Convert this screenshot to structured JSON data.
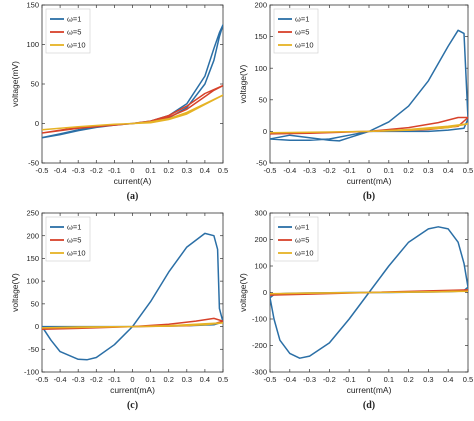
{
  "colors": {
    "w1": "#2b6fa6",
    "w5": "#d7422a",
    "w10": "#e6b325",
    "axis": "#333333"
  },
  "chart_data": [
    {
      "id": "a",
      "type": "line",
      "caption": "(a)",
      "xlabel": "current(A)",
      "ylabel": "voltage(mV)",
      "xlim": [
        -0.5,
        0.5
      ],
      "ylim": [
        -50,
        150
      ],
      "xticks": [
        -0.5,
        -0.4,
        -0.3,
        -0.2,
        -0.1,
        0,
        0.1,
        0.2,
        0.3,
        0.4,
        0.5
      ],
      "yticks": [
        -50,
        0,
        50,
        100,
        150
      ],
      "legend": "top-left",
      "series": [
        {
          "name": "ω=1",
          "color": "#2b6fa6",
          "x": [
            -0.5,
            -0.4,
            -0.3,
            -0.2,
            -0.1,
            0,
            0.1,
            0.2,
            0.3,
            0.4,
            0.45,
            0.48,
            0.5,
            0.48,
            0.45,
            0.4,
            0.3,
            0.2,
            0.1,
            0,
            -0.1,
            -0.2,
            -0.3,
            -0.4,
            -0.5
          ],
          "y": [
            -18,
            -14,
            -9,
            -5,
            -2,
            0,
            2,
            7,
            20,
            50,
            80,
            110,
            125,
            115,
            95,
            60,
            25,
            10,
            3,
            0,
            -2,
            -5,
            -8,
            -13,
            -18
          ]
        },
        {
          "name": "ω=5",
          "color": "#d7422a",
          "x": [
            -0.5,
            -0.3,
            -0.1,
            0,
            0.1,
            0.2,
            0.3,
            0.4,
            0.5,
            0.45,
            0.4,
            0.3,
            0.2,
            0.1,
            0,
            -0.1,
            -0.3,
            -0.5
          ],
          "y": [
            -12,
            -6,
            -2,
            0,
            3,
            10,
            22,
            38,
            48,
            42,
            34,
            18,
            8,
            2,
            0,
            -2,
            -5,
            -12
          ]
        },
        {
          "name": "ω=10",
          "color": "#e6b325",
          "x": [
            -0.5,
            -0.3,
            -0.1,
            0,
            0.1,
            0.2,
            0.3,
            0.4,
            0.5,
            0.45,
            0.4,
            0.3,
            0.2,
            0.1,
            0,
            -0.1,
            -0.3,
            -0.5
          ],
          "y": [
            -8,
            -4,
            -1,
            0,
            2,
            6,
            14,
            25,
            36,
            30,
            24,
            12,
            5,
            1,
            0,
            -1,
            -4,
            -8
          ]
        }
      ]
    },
    {
      "id": "b",
      "type": "line",
      "caption": "(b)",
      "xlabel": "current(mA)",
      "ylabel": "voltage(V)",
      "xlim": [
        -0.5,
        0.5
      ],
      "ylim": [
        -50,
        200
      ],
      "xticks": [
        -0.5,
        -0.4,
        -0.3,
        -0.2,
        -0.1,
        0,
        0.1,
        0.2,
        0.3,
        0.4,
        0.5
      ],
      "yticks": [
        -50,
        0,
        50,
        100,
        150,
        200
      ],
      "legend": "top-left",
      "series": [
        {
          "name": "ω=1",
          "color": "#2b6fa6",
          "x": [
            -0.5,
            -0.4,
            -0.3,
            -0.2,
            -0.1,
            0,
            0.1,
            0.2,
            0.3,
            0.4,
            0.45,
            0.48,
            0.5,
            0.48,
            0.4,
            0.3,
            0.2,
            0.1,
            0,
            -0.1,
            -0.15,
            -0.2,
            -0.3,
            -0.4,
            -0.5
          ],
          "y": [
            -12,
            -14,
            -14,
            -12,
            -6,
            0,
            15,
            40,
            80,
            135,
            160,
            155,
            20,
            5,
            2,
            0,
            0,
            0,
            0,
            -10,
            -15,
            -14,
            -10,
            -6,
            -12
          ]
        },
        {
          "name": "ω=5",
          "color": "#d7422a",
          "x": [
            -0.5,
            -0.3,
            0,
            0.2,
            0.35,
            0.45,
            0.5,
            0.45,
            0.3,
            0,
            -0.3,
            -0.5
          ],
          "y": [
            -4,
            -3,
            0,
            6,
            14,
            22,
            22,
            8,
            3,
            0,
            -2,
            -4
          ]
        },
        {
          "name": "ω=10",
          "color": "#e6b325",
          "x": [
            -0.5,
            -0.2,
            0,
            0.2,
            0.4,
            0.5,
            0.4,
            0.2,
            0,
            -0.2,
            -0.5
          ],
          "y": [
            -2,
            -1,
            0,
            3,
            8,
            12,
            6,
            2,
            0,
            -1,
            -2
          ]
        }
      ]
    },
    {
      "id": "c",
      "type": "line",
      "caption": "(c)",
      "xlabel": "current(mA)",
      "ylabel": "voltage(V)",
      "xlim": [
        -0.5,
        0.5
      ],
      "ylim": [
        -100,
        250
      ],
      "xticks": [
        -0.5,
        -0.4,
        -0.3,
        -0.2,
        -0.1,
        0,
        0.1,
        0.2,
        0.3,
        0.4,
        0.5
      ],
      "yticks": [
        -100,
        -50,
        0,
        50,
        100,
        150,
        200,
        250
      ],
      "legend": "top-left",
      "series": [
        {
          "name": "ω=1",
          "color": "#2b6fa6",
          "x": [
            -0.5,
            -0.45,
            -0.4,
            -0.3,
            -0.25,
            -0.2,
            -0.1,
            0,
            0.1,
            0.2,
            0.3,
            0.4,
            0.45,
            0.47,
            0.48,
            0.5,
            0.45,
            0.3,
            0.1,
            0,
            -0.1,
            -0.3,
            -0.45,
            -0.5
          ],
          "y": [
            0,
            -30,
            -55,
            -72,
            -73,
            -68,
            -40,
            0,
            55,
            120,
            175,
            205,
            200,
            170,
            40,
            10,
            4,
            2,
            1,
            0,
            0,
            0,
            0,
            0
          ]
        },
        {
          "name": "ω=5",
          "color": "#d7422a",
          "x": [
            -0.5,
            -0.3,
            0,
            0.2,
            0.35,
            0.45,
            0.5,
            0.45,
            0.3,
            0,
            -0.3,
            -0.5
          ],
          "y": [
            -6,
            -4,
            0,
            5,
            12,
            18,
            12,
            6,
            2,
            0,
            -3,
            -6
          ]
        },
        {
          "name": "ω=10",
          "color": "#e6b325",
          "x": [
            -0.5,
            -0.3,
            0,
            0.2,
            0.4,
            0.5,
            0.4,
            0.2,
            0,
            -0.3,
            -0.5
          ],
          "y": [
            -3,
            -2,
            0,
            2,
            6,
            8,
            4,
            1,
            0,
            -1,
            -3
          ]
        }
      ]
    },
    {
      "id": "d",
      "type": "line",
      "caption": "(d)",
      "xlabel": "current(mA)",
      "ylabel": "voltage(V)",
      "xlim": [
        -0.5,
        0.5
      ],
      "ylim": [
        -300,
        300
      ],
      "xticks": [
        -0.5,
        -0.4,
        -0.3,
        -0.2,
        -0.1,
        0,
        0.1,
        0.2,
        0.3,
        0.4,
        0.5
      ],
      "yticks": [
        -300,
        -200,
        -100,
        0,
        100,
        200,
        300
      ],
      "legend": "top-left",
      "series": [
        {
          "name": "ω=1",
          "color": "#2b6fa6",
          "x": [
            -0.5,
            -0.48,
            -0.45,
            -0.4,
            -0.35,
            -0.3,
            -0.2,
            -0.1,
            0,
            0.1,
            0.2,
            0.3,
            0.35,
            0.4,
            0.45,
            0.48,
            0.5,
            0.48,
            0.45,
            0.4,
            0.3,
            0.2,
            0.1,
            0,
            -0.1,
            -0.2,
            -0.3,
            -0.4,
            -0.45,
            -0.48,
            -0.5
          ],
          "y": [
            -20,
            -100,
            -180,
            -230,
            -248,
            -240,
            -190,
            -100,
            0,
            100,
            190,
            240,
            248,
            240,
            190,
            110,
            20,
            8,
            5,
            3,
            2,
            1,
            0,
            0,
            0,
            -1,
            -2,
            -3,
            -5,
            -8,
            -20
          ]
        },
        {
          "name": "ω=5",
          "color": "#d7422a",
          "x": [
            -0.5,
            -0.3,
            0,
            0.3,
            0.5,
            0.3,
            0,
            -0.3,
            -0.5
          ],
          "y": [
            -10,
            -6,
            0,
            6,
            10,
            4,
            0,
            -4,
            -10
          ]
        },
        {
          "name": "ω=10",
          "color": "#e6b325",
          "x": [
            -0.5,
            -0.3,
            0,
            0.3,
            0.5,
            0.3,
            0,
            -0.3,
            -0.5
          ],
          "y": [
            -5,
            -3,
            0,
            3,
            5,
            2,
            0,
            -2,
            -5
          ]
        }
      ]
    }
  ]
}
